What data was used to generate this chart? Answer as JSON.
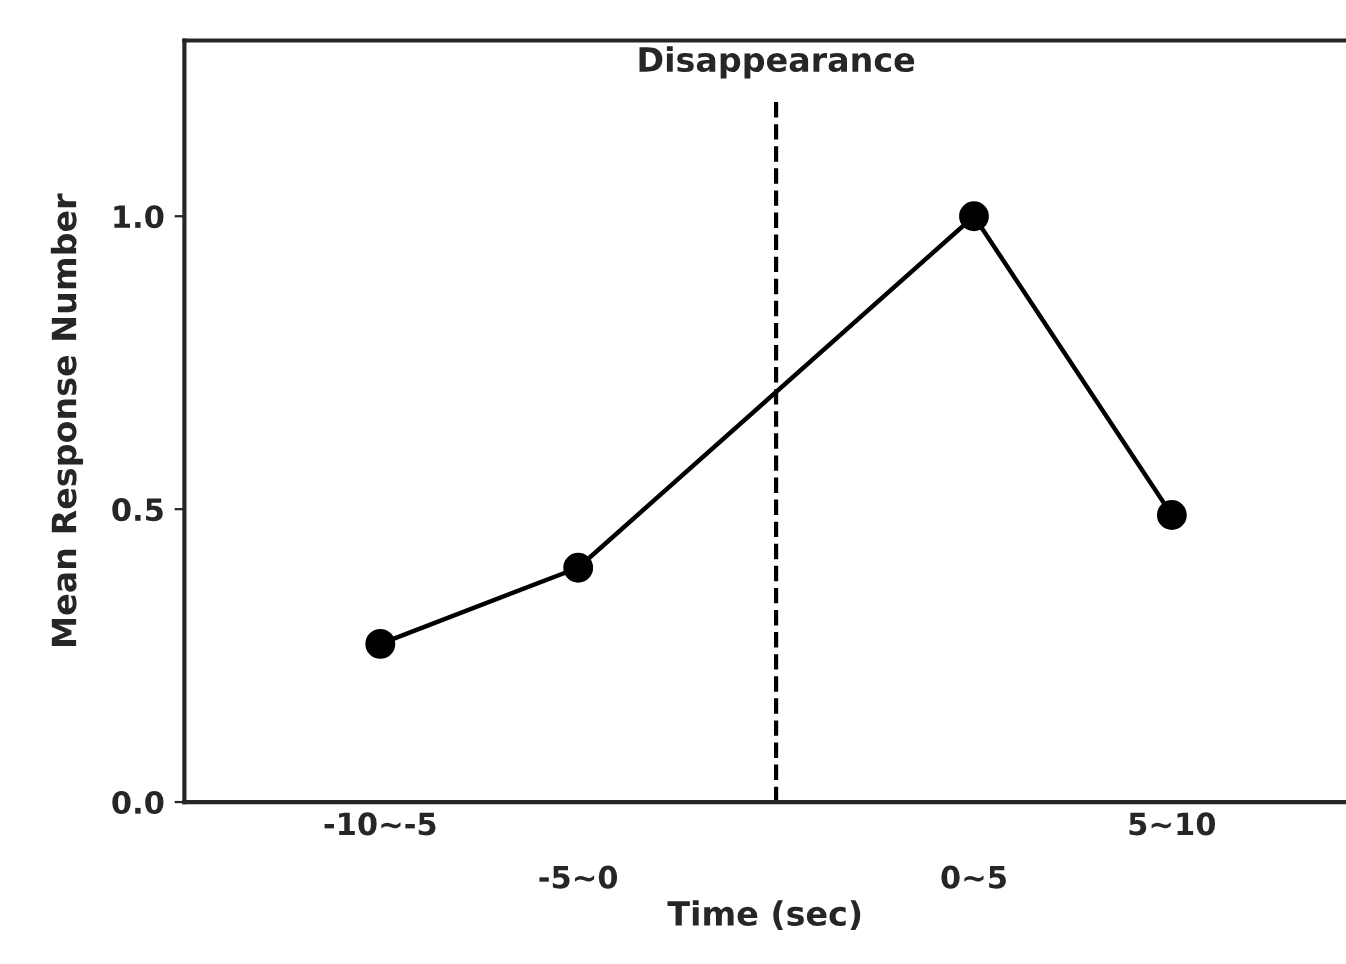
{
  "chart_data": {
    "type": "line",
    "categories": [
      "-10∼-5",
      "-5∼0",
      null,
      "0∼5",
      "5∼10"
    ],
    "series": [
      {
        "color": "#000000",
        "values": [
          0.27,
          0.4,
          null,
          1.0,
          0.49
        ]
      }
    ],
    "xlabel": "Time (sec)",
    "ylabel": "Mean Response Number",
    "ylim": [
      0,
      1.3
    ],
    "yticks": [
      {
        "value": 0,
        "label": "0.0"
      },
      {
        "value": 0.5,
        "label": "0.5"
      },
      {
        "value": 1.0,
        "label": "1.0"
      }
    ],
    "annotations": [
      "Disappearance"
    ],
    "marker": "circle",
    "line_style": "solid",
    "legend": false
  }
}
